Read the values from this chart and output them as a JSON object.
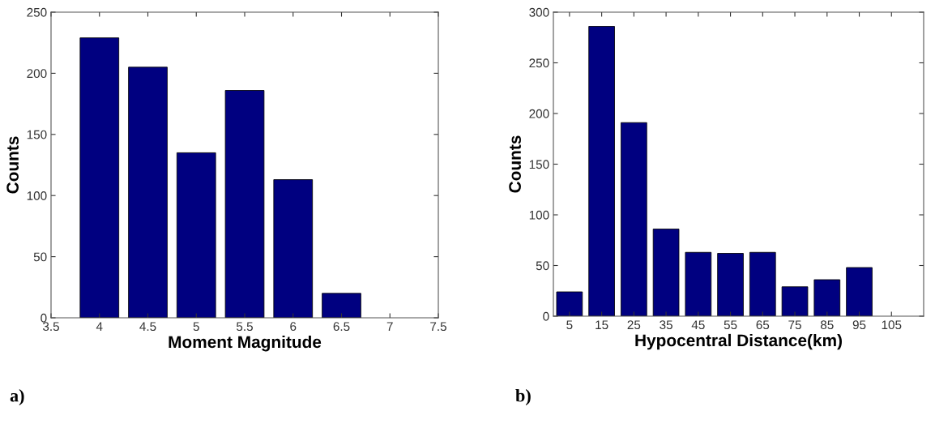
{
  "chart_data": [
    {
      "type": "bar",
      "x": [
        4,
        4.5,
        5,
        5.5,
        6,
        6.5
      ],
      "values": [
        229,
        205,
        135,
        186,
        113,
        20
      ],
      "color": "#000080",
      "xlabel": "Moment Magnitude",
      "ylabel": "Counts",
      "xlim": [
        3.5,
        7.5
      ],
      "xticks": [
        3.5,
        4,
        4.5,
        5,
        5.5,
        6,
        6.5,
        7,
        7.5
      ],
      "ylim": [
        0,
        250
      ],
      "yticks": [
        0,
        50,
        100,
        150,
        200,
        250
      ],
      "annotations": [
        "a)"
      ]
    },
    {
      "type": "bar",
      "x": [
        5,
        15,
        25,
        35,
        45,
        55,
        65,
        75,
        85,
        95
      ],
      "values": [
        24,
        286,
        191,
        86,
        63,
        62,
        63,
        29,
        36,
        48
      ],
      "color": "#000080",
      "xlabel": "Hypocentral Distance(km)",
      "ylabel": "Counts",
      "xlim": [
        0,
        115
      ],
      "xticks": [
        5,
        15,
        25,
        35,
        45,
        55,
        65,
        75,
        85,
        95,
        105
      ],
      "ylim": [
        0,
        300
      ],
      "yticks": [
        0,
        50,
        100,
        150,
        200,
        250,
        300
      ],
      "annotations": [
        "b)"
      ]
    }
  ]
}
